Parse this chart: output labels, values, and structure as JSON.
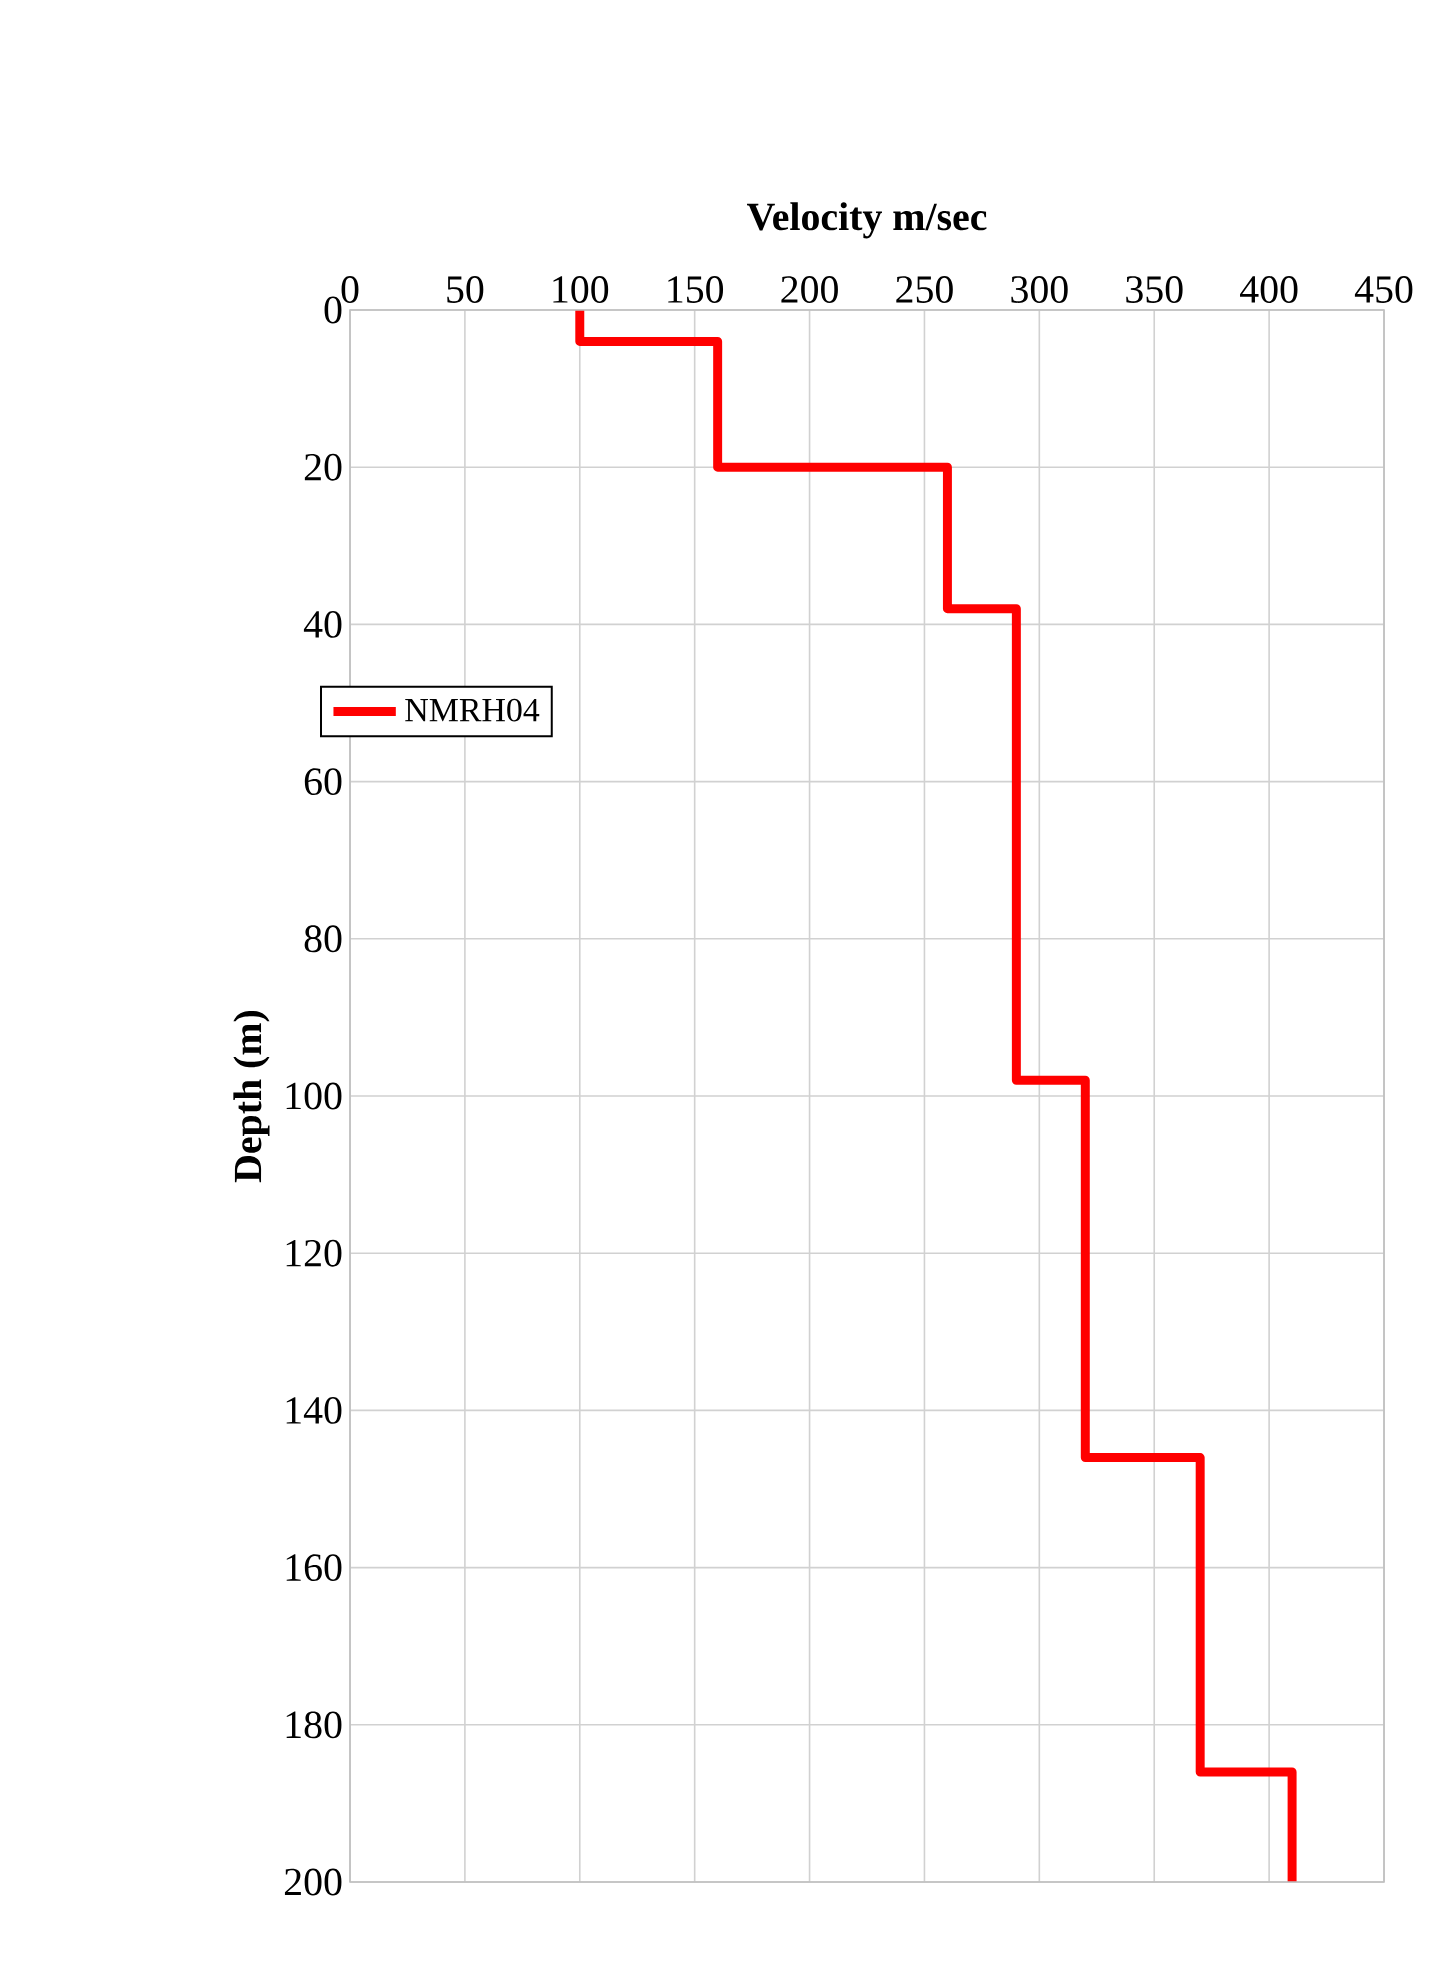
{
  "chart_data": {
    "type": "line",
    "xlabel": "Velocity  m/sec",
    "ylabel": "Depth (m)",
    "xlim": [
      0,
      450
    ],
    "xticks": [
      0,
      50,
      100,
      150,
      200,
      250,
      300,
      350,
      400,
      450
    ],
    "ylim": [
      200,
      0
    ],
    "yticks": [
      0,
      20,
      40,
      60,
      80,
      100,
      120,
      140,
      160,
      180,
      200
    ],
    "grid": true,
    "legend": "left",
    "marker": "none",
    "line_style": "solid",
    "series": [
      {
        "name": "NMRH04",
        "color": "#ff0000",
        "x": [
          100,
          100,
          160,
          160,
          260,
          260,
          290,
          290,
          320,
          320,
          370,
          370,
          410,
          410
        ],
        "values": [
          0,
          4,
          4,
          20,
          20,
          38,
          38,
          98,
          98,
          146,
          146,
          186,
          186,
          200
        ]
      }
    ]
  }
}
